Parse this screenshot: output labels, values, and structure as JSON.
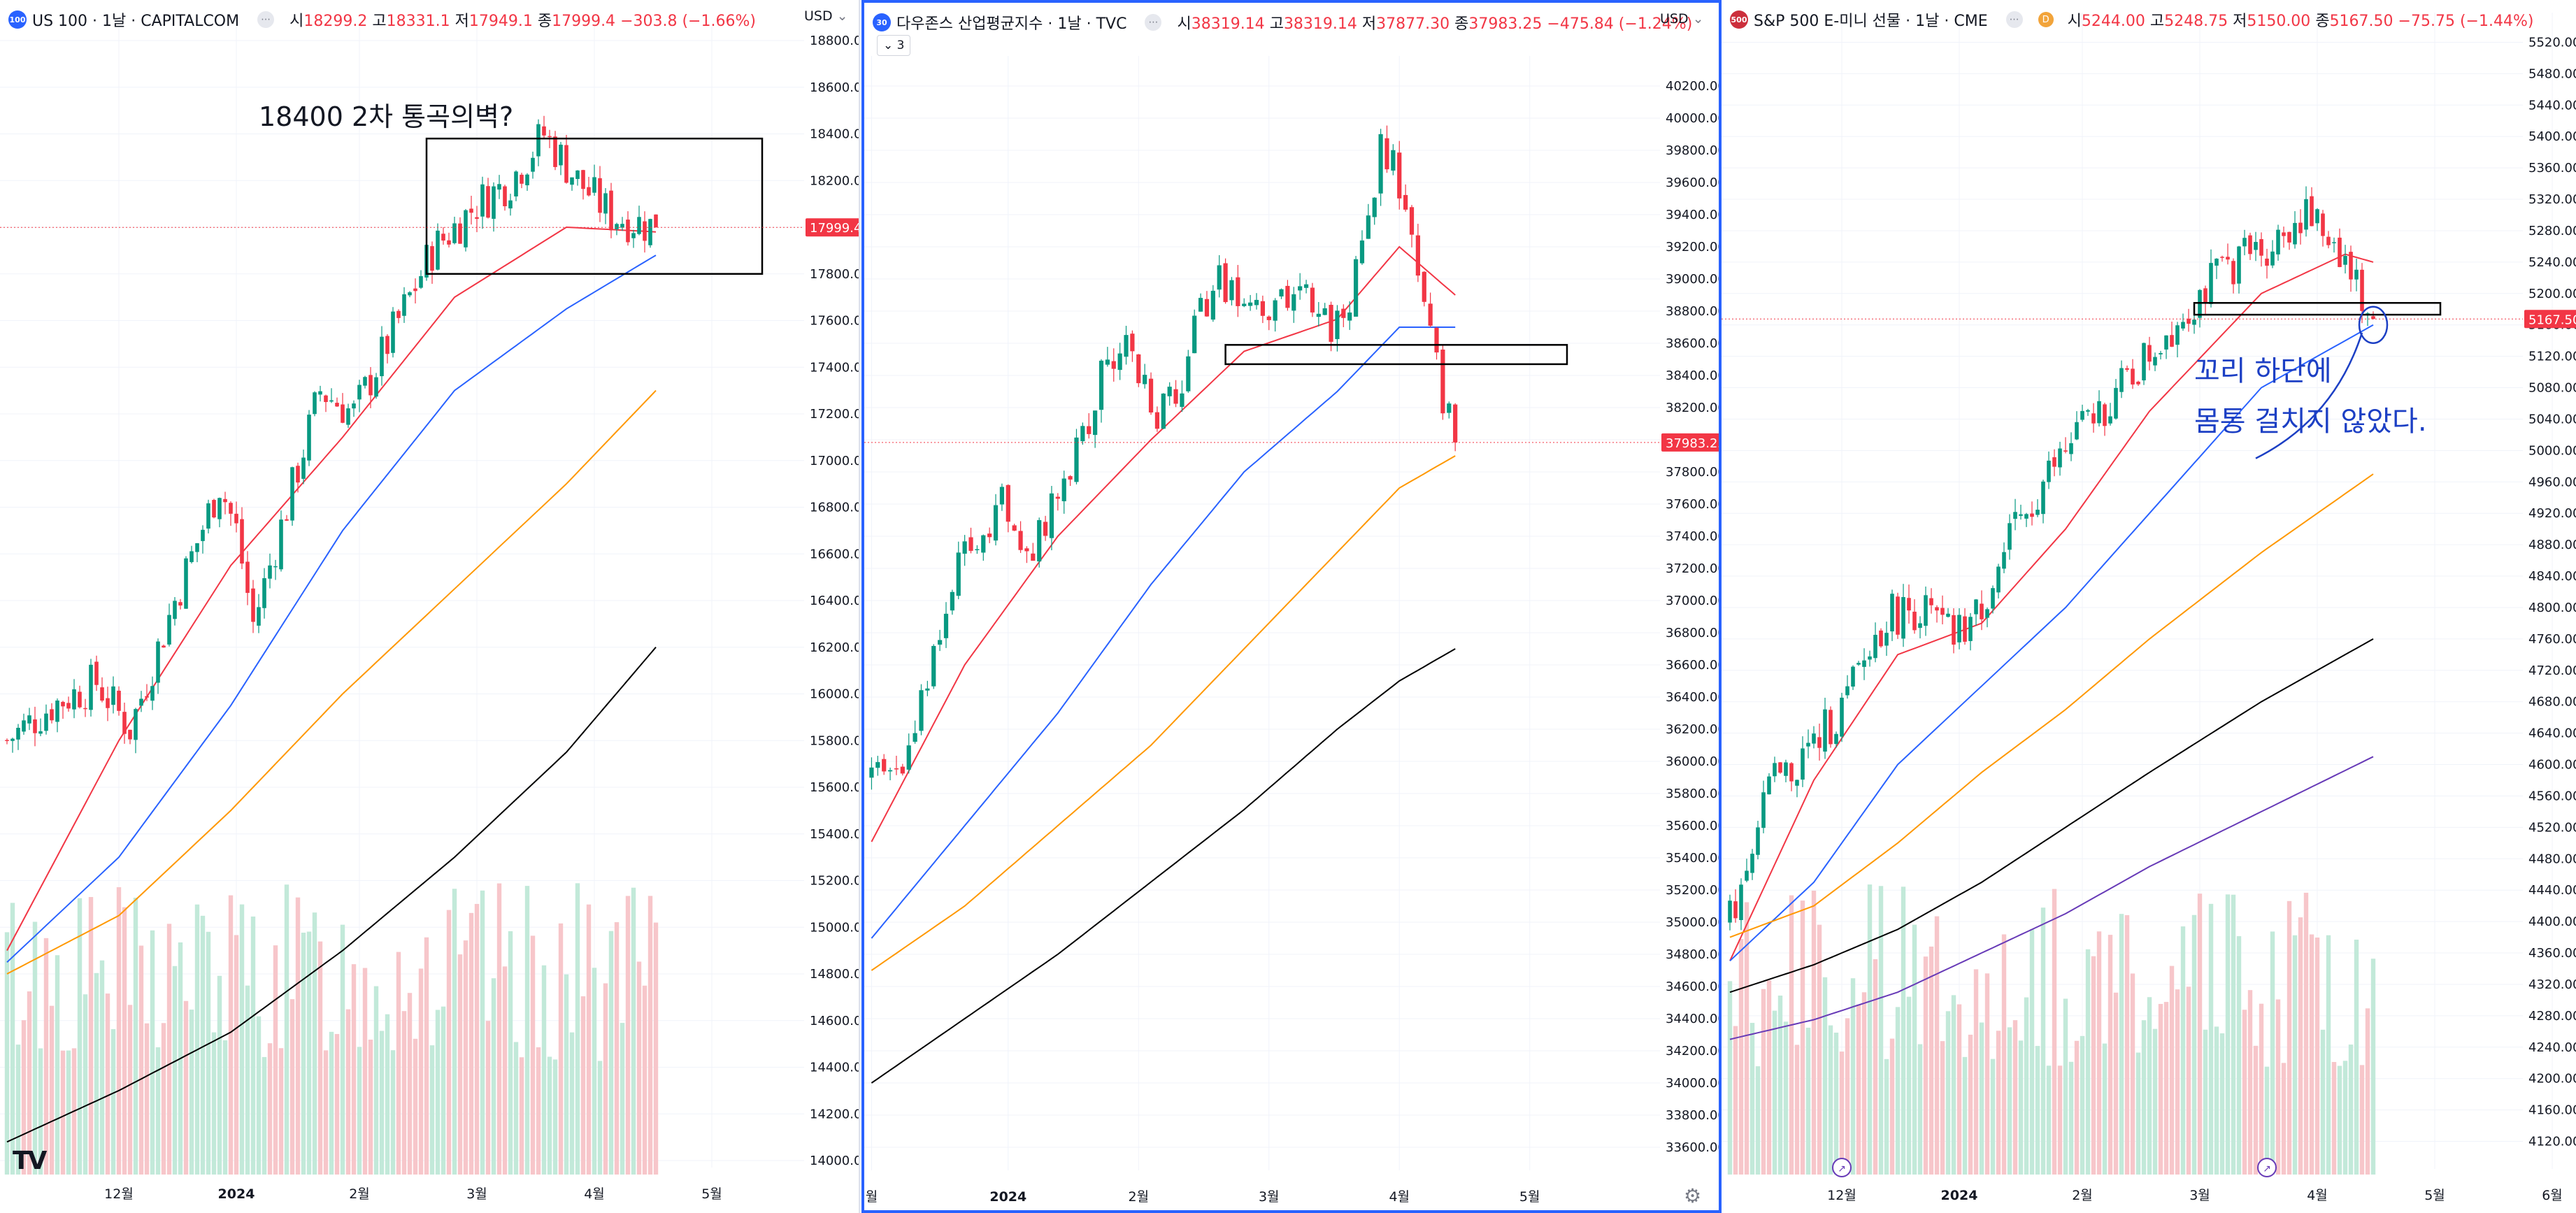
{
  "panes": [
    {
      "badge": "100",
      "badge_color": "#2962ff",
      "title": "US 100 · 1날 · CAPITALCOM",
      "ohlc": {
        "o_label": "시",
        "o": "18299.2",
        "h_label": "고",
        "h": "18331.1",
        "l_label": "저",
        "l": "17949.1",
        "c_label": "종",
        "c": "17999.4",
        "chg": "−303.8 (−1.66%)"
      },
      "currency": "USD",
      "price_tag": "17999.4",
      "annotation": "18400 2차 통곡의벽?"
    },
    {
      "badge": "30",
      "badge_color": "#2962ff",
      "title": "다우존스 산업평균지수 · 1날 · TVC",
      "ohlc": {
        "o_label": "시",
        "o": "38319.14",
        "h_label": "고",
        "h": "38319.14",
        "l_label": "저",
        "l": "37877.30",
        "c_label": "종",
        "c": "37983.25",
        "chg": "−475.84 (−1.24%)"
      },
      "currency": "USD",
      "price_tag": "37983.25",
      "collapse_label": "3"
    },
    {
      "badge": "500",
      "badge_color": "#cc2f3c",
      "title": "S&P 500 E-미니 선물 · 1날 · CME",
      "dbadge": "D",
      "ohlc": {
        "o_label": "시",
        "o": "5244.00",
        "h_label": "고",
        "h": "5248.75",
        "l_label": "저",
        "l": "5150.00",
        "c_label": "종",
        "c": "5167.50",
        "chg": "−75.75 (−1.44%)"
      },
      "currency": "USD",
      "price_tag": "5167.50",
      "annotation_line1": "꼬리 하단에",
      "annotation_line2": "몸통 걸치지 않았다."
    }
  ],
  "tv_logo": "TV",
  "colors": {
    "up": "#089981",
    "down": "#f23645",
    "ma20": "#f23645",
    "ma50": "#2962ff",
    "ma100": "#ff9800",
    "ma200": "#000000",
    "ma300": "#673ab7",
    "vol_up": "#c2e9d9",
    "vol_down": "#f7c6ca",
    "annotation_blue": "#1c3fc4"
  },
  "chart_data": [
    {
      "type": "candlestick",
      "symbol": "US 100",
      "interval": "1D",
      "ylim": [
        14000,
        18800
      ],
      "y_ticks": [
        "18800.0",
        "18600.0",
        "18400.0",
        "18200.0",
        "18000.0",
        "17800.0",
        "17600.0",
        "17400.0",
        "17200.0",
        "17000.0",
        "16800.0",
        "16600.0",
        "16400.0",
        "16200.0",
        "16000.0",
        "15800.0",
        "15600.0",
        "15400.0",
        "15200.0",
        "15000.0",
        "14800.0",
        "14600.0",
        "14400.0",
        "14200.0",
        "14000.0"
      ],
      "x_ticks": [
        "12월",
        "2024",
        "2월",
        "3월",
        "4월",
        "5월"
      ],
      "x_ticks_idx": [
        20,
        41,
        63,
        84,
        105,
        126
      ],
      "n_bars": 117,
      "anchors": [
        [
          0,
          15800
        ],
        [
          8,
          15950
        ],
        [
          16,
          16050
        ],
        [
          22,
          15850
        ],
        [
          30,
          16400
        ],
        [
          38,
          16900
        ],
        [
          41,
          16700
        ],
        [
          44,
          16300
        ],
        [
          50,
          16800
        ],
        [
          56,
          17300
        ],
        [
          62,
          17200
        ],
        [
          70,
          17600
        ],
        [
          76,
          17900
        ],
        [
          84,
          18100
        ],
        [
          90,
          18200
        ],
        [
          96,
          18400
        ],
        [
          102,
          18200
        ],
        [
          108,
          18050
        ],
        [
          116,
          17999.4
        ]
      ],
      "ma": [
        {
          "name": "MA20",
          "color": "#f23645",
          "points": [
            [
              0,
              14900
            ],
            [
              20,
              15800
            ],
            [
              40,
              16550
            ],
            [
              60,
              17100
            ],
            [
              80,
              17700
            ],
            [
              100,
              18000
            ],
            [
              116,
              17980
            ]
          ]
        },
        {
          "name": "MA50",
          "color": "#2962ff",
          "points": [
            [
              0,
              14850
            ],
            [
              20,
              15300
            ],
            [
              40,
              15950
            ],
            [
              60,
              16700
            ],
            [
              80,
              17300
            ],
            [
              100,
              17650
            ],
            [
              116,
              17880
            ]
          ]
        },
        {
          "name": "MA100",
          "color": "#ff9800",
          "points": [
            [
              0,
              14800
            ],
            [
              20,
              15050
            ],
            [
              40,
              15500
            ],
            [
              60,
              16000
            ],
            [
              80,
              16450
            ],
            [
              100,
              16900
            ],
            [
              116,
              17300
            ]
          ]
        },
        {
          "name": "MA200",
          "color": "#000000",
          "points": [
            [
              0,
              14080
            ],
            [
              20,
              14300
            ],
            [
              40,
              14550
            ],
            [
              60,
              14900
            ],
            [
              80,
              15300
            ],
            [
              100,
              15750
            ],
            [
              116,
              16200
            ]
          ]
        }
      ],
      "box": {
        "x0": 75,
        "x1": 135,
        "y0": 17800,
        "y1": 18380
      },
      "price_line": 17999.4
    },
    {
      "type": "candlestick",
      "symbol": "다우존스 산업평균지수",
      "interval": "1D",
      "ylim": [
        33500,
        40300
      ],
      "y_ticks": [
        "40200.00",
        "40000.00",
        "39800.00",
        "39600.00",
        "39400.00",
        "39200.00",
        "39000.00",
        "38800.00",
        "38600.00",
        "38400.00",
        "38200.00",
        "38000.00",
        "37800.00",
        "37600.00",
        "37400.00",
        "37200.00",
        "37000.00",
        "36800.00",
        "36600.00",
        "36400.00",
        "36200.00",
        "36000.00",
        "35800.00",
        "35600.00",
        "35400.00",
        "35200.00",
        "35000.00",
        "34800.00",
        "34600.00",
        "34400.00",
        "34200.00",
        "34000.00",
        "33800.00",
        "33600.00"
      ],
      "x_ticks": [
        "월",
        "2024",
        "2월",
        "3월",
        "4월",
        "5월"
      ],
      "x_ticks_idx": [
        0,
        22,
        43,
        64,
        85,
        106
      ],
      "n_bars": 95,
      "anchors": [
        [
          0,
          35900
        ],
        [
          5,
          36000
        ],
        [
          10,
          36700
        ],
        [
          14,
          37200
        ],
        [
          18,
          37500
        ],
        [
          22,
          37600
        ],
        [
          26,
          37300
        ],
        [
          30,
          37700
        ],
        [
          34,
          38000
        ],
        [
          38,
          38500
        ],
        [
          42,
          38600
        ],
        [
          46,
          38100
        ],
        [
          50,
          38400
        ],
        [
          54,
          38900
        ],
        [
          58,
          39000
        ],
        [
          62,
          38800
        ],
        [
          66,
          38800
        ],
        [
          70,
          38900
        ],
        [
          74,
          38700
        ],
        [
          78,
          39000
        ],
        [
          82,
          39800
        ],
        [
          84,
          39700
        ],
        [
          86,
          39300
        ],
        [
          88,
          39100
        ],
        [
          90,
          38700
        ],
        [
          92,
          38300
        ],
        [
          94,
          37983.25
        ]
      ],
      "ma": [
        {
          "name": "MA20",
          "color": "#f23645",
          "points": [
            [
              0,
              35500
            ],
            [
              15,
              36600
            ],
            [
              30,
              37400
            ],
            [
              45,
              38000
            ],
            [
              60,
              38550
            ],
            [
              75,
              38750
            ],
            [
              85,
              39200
            ],
            [
              94,
              38900
            ]
          ]
        },
        {
          "name": "MA50",
          "color": "#2962ff",
          "points": [
            [
              0,
              34900
            ],
            [
              15,
              35600
            ],
            [
              30,
              36300
            ],
            [
              45,
              37100
            ],
            [
              60,
              37800
            ],
            [
              75,
              38300
            ],
            [
              85,
              38700
            ],
            [
              94,
              38700
            ]
          ]
        },
        {
          "name": "MA100",
          "color": "#ff9800",
          "points": [
            [
              0,
              34700
            ],
            [
              15,
              35100
            ],
            [
              30,
              35600
            ],
            [
              45,
              36100
            ],
            [
              60,
              36700
            ],
            [
              75,
              37300
            ],
            [
              85,
              37700
            ],
            [
              94,
              37900
            ]
          ]
        },
        {
          "name": "MA200",
          "color": "#000000",
          "points": [
            [
              0,
              34000
            ],
            [
              15,
              34400
            ],
            [
              30,
              34800
            ],
            [
              45,
              35250
            ],
            [
              60,
              35700
            ],
            [
              75,
              36200
            ],
            [
              85,
              36500
            ],
            [
              94,
              36700
            ]
          ]
        }
      ],
      "box": {
        "x0": 57,
        "x1": 112,
        "y0": 38470,
        "y1": 38590
      },
      "price_line": 37983.25
    },
    {
      "type": "candlestick",
      "symbol": "S&P 500 E-미니 선물",
      "interval": "1D",
      "ylim": [
        4100,
        5540
      ],
      "y_ticks": [
        "5520.00",
        "5480.00",
        "5440.00",
        "5400.00",
        "5360.00",
        "5320.00",
        "5280.00",
        "5240.00",
        "5200.00",
        "5160.00",
        "5120.00",
        "5080.00",
        "5040.00",
        "5000.00",
        "4960.00",
        "4920.00",
        "4880.00",
        "4840.00",
        "4800.00",
        "4760.00",
        "4720.00",
        "4680.00",
        "4640.00",
        "4600.00",
        "4560.00",
        "4520.00",
        "4480.00",
        "4440.00",
        "4400.00",
        "4360.00",
        "4320.00",
        "4280.00",
        "4240.00",
        "4200.00",
        "4160.00",
        "4120.00"
      ],
      "x_ticks": [
        "12월",
        "2024",
        "2월",
        "3월",
        "4월",
        "5월",
        "6월"
      ],
      "x_ticks_idx": [
        20,
        41,
        63,
        84,
        105,
        126,
        147
      ],
      "n_bars": 116,
      "anchors": [
        [
          0,
          4400
        ],
        [
          6,
          4560
        ],
        [
          12,
          4600
        ],
        [
          20,
          4670
        ],
        [
          28,
          4790
        ],
        [
          34,
          4800
        ],
        [
          40,
          4760
        ],
        [
          44,
          4790
        ],
        [
          50,
          4880
        ],
        [
          56,
          4960
        ],
        [
          62,
          5020
        ],
        [
          70,
          5080
        ],
        [
          78,
          5150
        ],
        [
          84,
          5200
        ],
        [
          90,
          5240
        ],
        [
          96,
          5260
        ],
        [
          102,
          5300
        ],
        [
          108,
          5270
        ],
        [
          115,
          5167.5
        ]
      ],
      "ma": [
        {
          "name": "MA20",
          "color": "#f23645",
          "points": [
            [
              0,
              4350
            ],
            [
              15,
              4580
            ],
            [
              30,
              4740
            ],
            [
              45,
              4780
            ],
            [
              60,
              4900
            ],
            [
              75,
              5050
            ],
            [
              95,
              5200
            ],
            [
              110,
              5250
            ],
            [
              115,
              5240
            ]
          ]
        },
        {
          "name": "MA50",
          "color": "#2962ff",
          "points": [
            [
              0,
              4350
            ],
            [
              15,
              4450
            ],
            [
              30,
              4600
            ],
            [
              45,
              4700
            ],
            [
              60,
              4800
            ],
            [
              75,
              4920
            ],
            [
              95,
              5080
            ],
            [
              115,
              5160
            ]
          ]
        },
        {
          "name": "MA100",
          "color": "#ff9800",
          "points": [
            [
              0,
              4380
            ],
            [
              15,
              4420
            ],
            [
              30,
              4500
            ],
            [
              45,
              4590
            ],
            [
              60,
              4670
            ],
            [
              75,
              4760
            ],
            [
              95,
              4870
            ],
            [
              115,
              4970
            ]
          ]
        },
        {
          "name": "MA200",
          "color": "#000000",
          "points": [
            [
              0,
              4310
            ],
            [
              15,
              4345
            ],
            [
              30,
              4390
            ],
            [
              45,
              4450
            ],
            [
              60,
              4520
            ],
            [
              75,
              4590
            ],
            [
              95,
              4680
            ],
            [
              115,
              4760
            ]
          ]
        },
        {
          "name": "MA300",
          "color": "#673ab7",
          "points": [
            [
              0,
              4250
            ],
            [
              15,
              4275
            ],
            [
              30,
              4310
            ],
            [
              45,
              4360
            ],
            [
              60,
              4410
            ],
            [
              75,
              4470
            ],
            [
              95,
              4540
            ],
            [
              115,
              4610
            ]
          ]
        }
      ],
      "box": {
        "x0": 83,
        "x1": 127,
        "y0": 5173,
        "y1": 5188
      },
      "price_line": 5167.5
    }
  ]
}
